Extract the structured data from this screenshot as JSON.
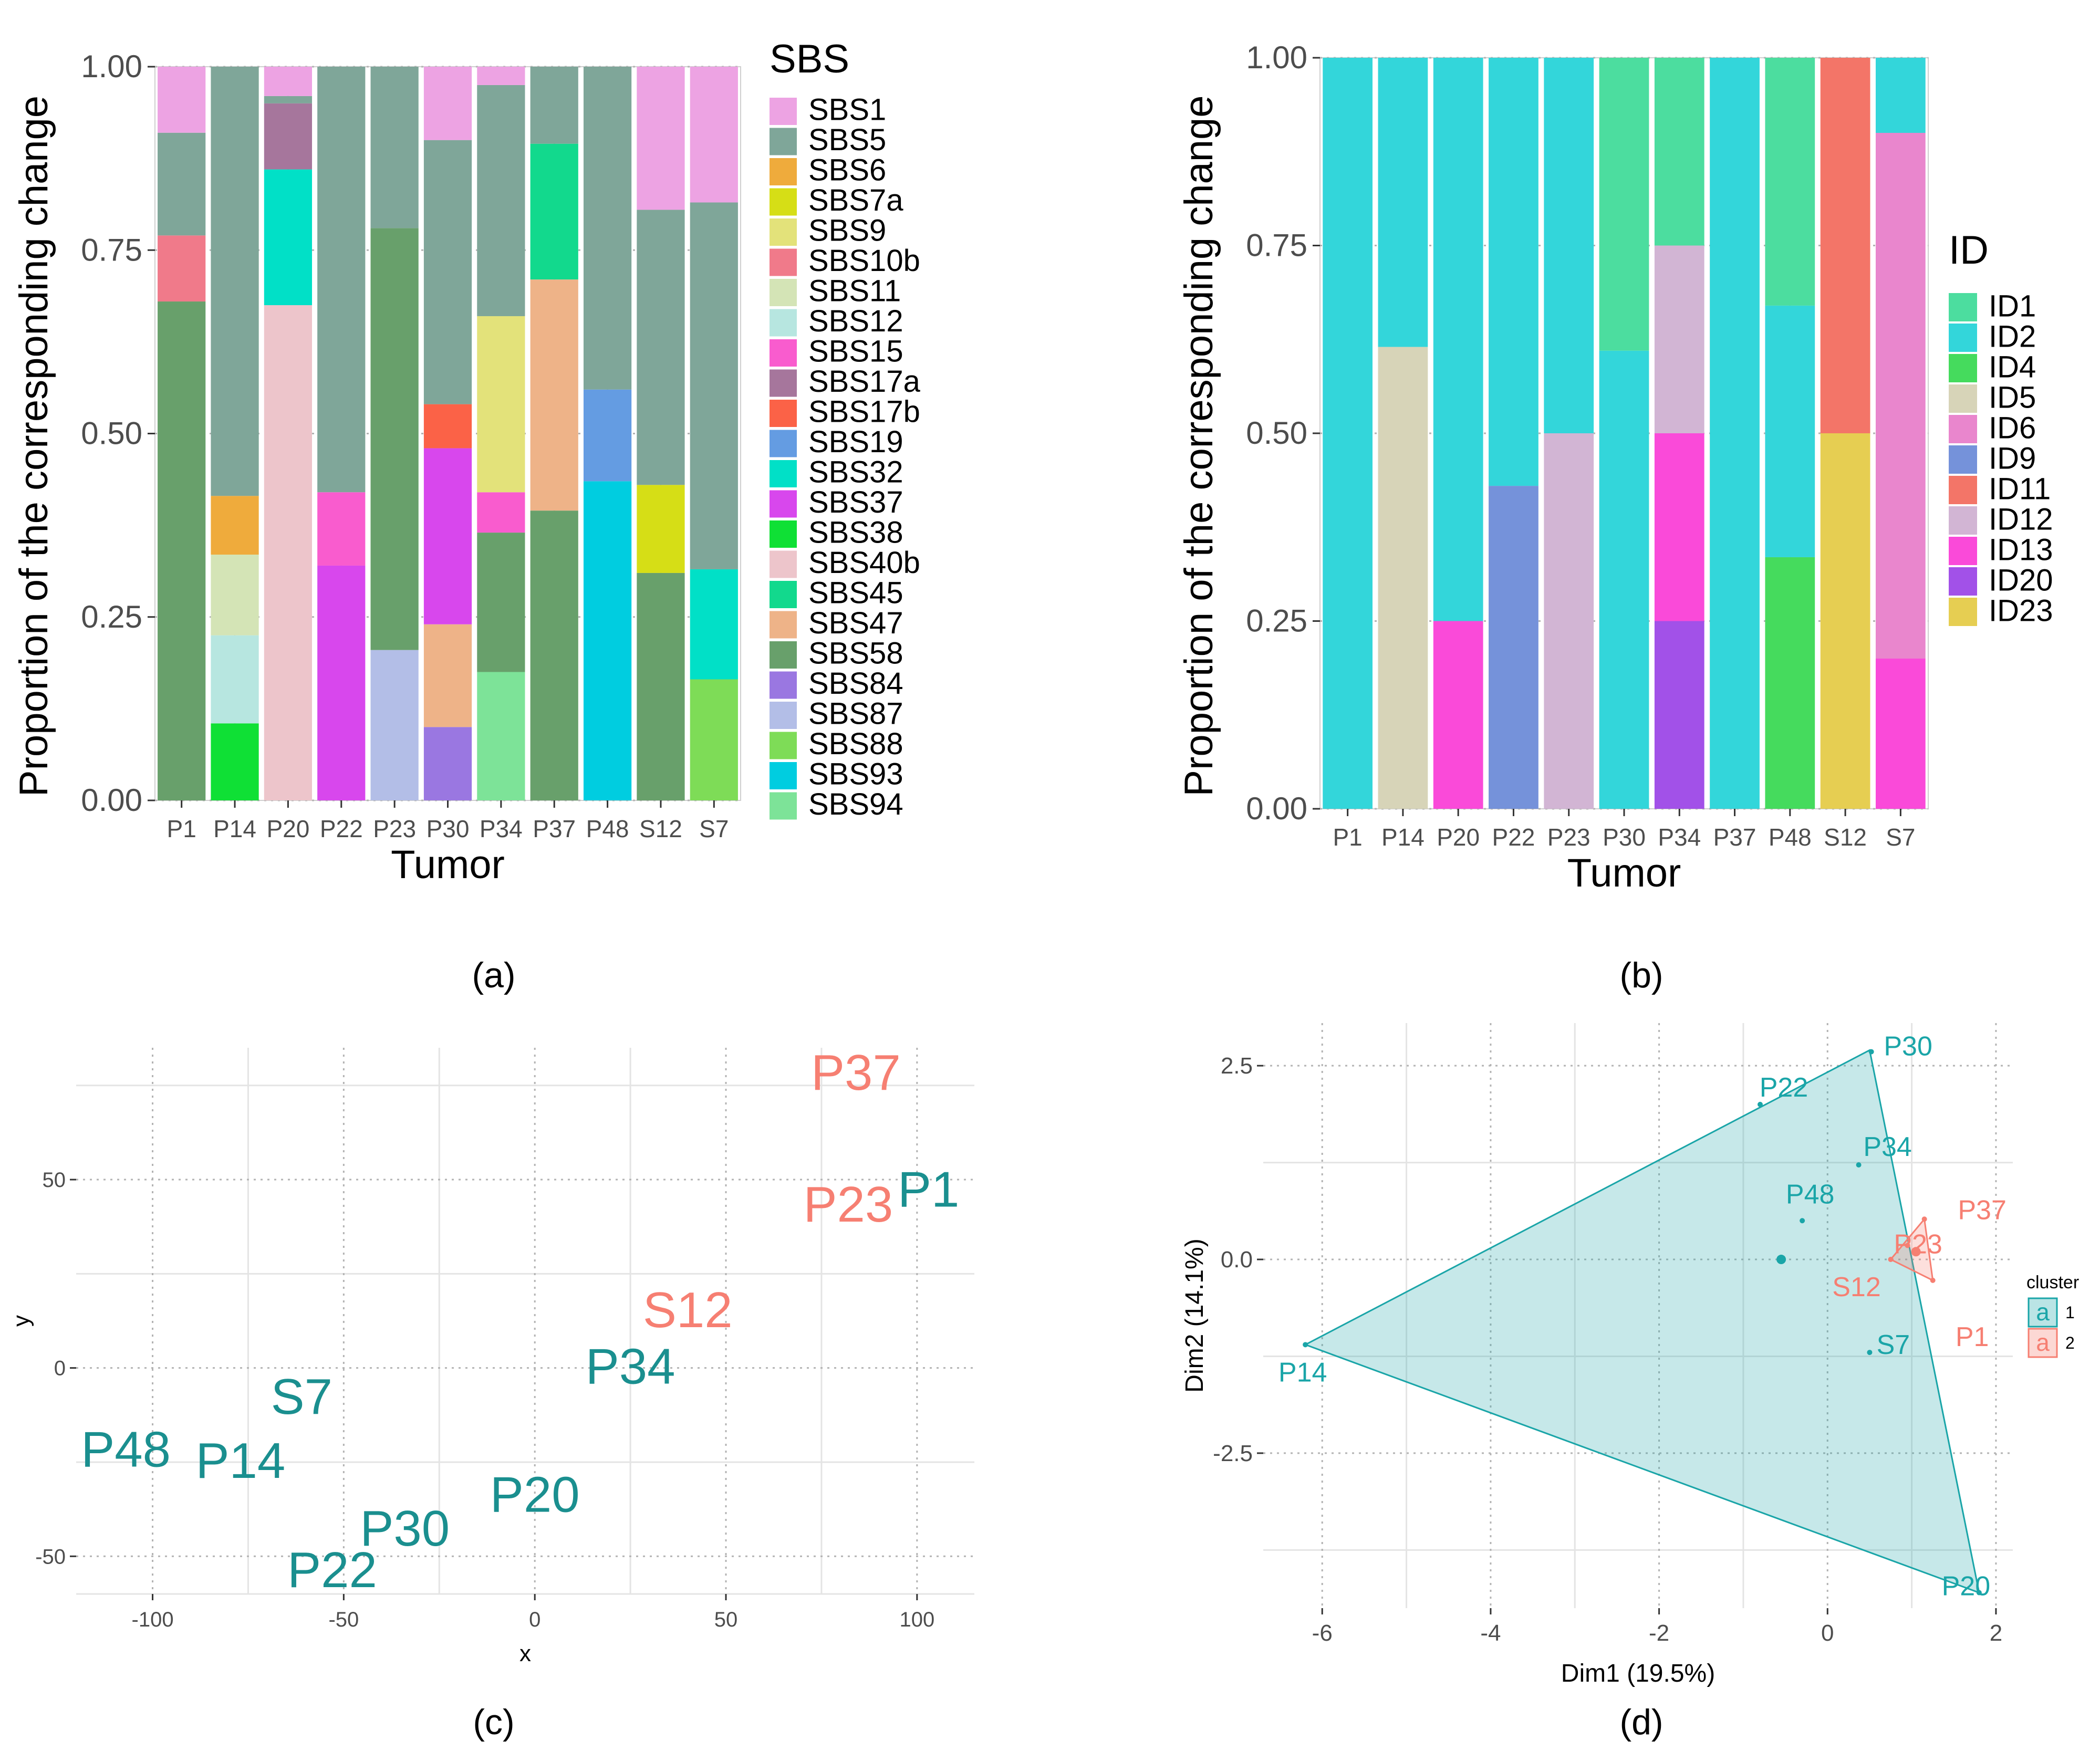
{
  "panel_labels": [
    "(a)",
    "(b)",
    "(c)",
    "(d)"
  ],
  "chart_data": [
    {
      "panel": "a",
      "type": "bar",
      "stacked": true,
      "title": "",
      "xlabel": "Tumor",
      "ylabel": "Proportion of the corresponding change",
      "ylim": [
        0,
        1
      ],
      "yticks": [
        "0.00",
        "0.25",
        "0.50",
        "0.75",
        "1.00"
      ],
      "categories": [
        "P1",
        "P14",
        "P20",
        "P22",
        "P23",
        "P30",
        "P34",
        "P37",
        "P48",
        "S12",
        "S7"
      ],
      "legend_title": "SBS",
      "legend": [
        {
          "name": "SBS1",
          "color": "#EDA3E3"
        },
        {
          "name": "SBS5",
          "color": "#7FA699"
        },
        {
          "name": "SBS6",
          "color": "#EFAB3C"
        },
        {
          "name": "SBS7a",
          "color": "#D6DE16"
        },
        {
          "name": "SBS9",
          "color": "#E3E27A"
        },
        {
          "name": "SBS10b",
          "color": "#F07A8A"
        },
        {
          "name": "SBS11",
          "color": "#D4E4B6"
        },
        {
          "name": "SBS12",
          "color": "#B7E6E0"
        },
        {
          "name": "SBS15",
          "color": "#F95CCE"
        },
        {
          "name": "SBS17a",
          "color": "#A6769C"
        },
        {
          "name": "SBS17b",
          "color": "#FB6247"
        },
        {
          "name": "SBS19",
          "color": "#649CE2"
        },
        {
          "name": "SBS32",
          "color": "#01E0C7"
        },
        {
          "name": "SBS37",
          "color": "#D847ED"
        },
        {
          "name": "SBS38",
          "color": "#0FE035"
        },
        {
          "name": "SBS40b",
          "color": "#EDC5CB"
        },
        {
          "name": "SBS45",
          "color": "#12D98D"
        },
        {
          "name": "SBS47",
          "color": "#EEB388"
        },
        {
          "name": "SBS58",
          "color": "#68A06B"
        },
        {
          "name": "SBS84",
          "color": "#9A77E1"
        },
        {
          "name": "SBS87",
          "color": "#B3BEE7"
        },
        {
          "name": "SBS88",
          "color": "#7EDC57"
        },
        {
          "name": "SBS93",
          "color": "#00CDE0"
        },
        {
          "name": "SBS94",
          "color": "#7DE398"
        }
      ],
      "bars": [
        [
          [
            "SBS58",
            0.68
          ],
          [
            "SBS10b",
            0.09
          ],
          [
            "SBS5",
            0.14
          ],
          [
            "SBS1",
            0.09
          ]
        ],
        [
          [
            "SBS38",
            0.105
          ],
          [
            "SBS12",
            0.12
          ],
          [
            "SBS11",
            0.11
          ],
          [
            "SBS6",
            0.08
          ],
          [
            "SBS5",
            0.585
          ]
        ],
        [
          [
            "SBS40b",
            0.675
          ],
          [
            "SBS32",
            0.185
          ],
          [
            "SBS17a",
            0.09
          ],
          [
            "SBS5",
            0.01
          ],
          [
            "SBS1",
            0.04
          ]
        ],
        [
          [
            "SBS37",
            0.32
          ],
          [
            "SBS15",
            0.1
          ],
          [
            "SBS5",
            0.58
          ]
        ],
        [
          [
            "SBS87",
            0.205
          ],
          [
            "SBS58",
            0.575
          ],
          [
            "SBS5",
            0.22
          ]
        ],
        [
          [
            "SBS84",
            0.1
          ],
          [
            "SBS47",
            0.14
          ],
          [
            "SBS37",
            0.24
          ],
          [
            "SBS17b",
            0.06
          ],
          [
            "SBS5",
            0.36
          ],
          [
            "SBS1",
            0.1
          ]
        ],
        [
          [
            "SBS94",
            0.175
          ],
          [
            "SBS58",
            0.19
          ],
          [
            "SBS15",
            0.055
          ],
          [
            "SBS9",
            0.24
          ],
          [
            "SBS5",
            0.315
          ],
          [
            "SBS1",
            0.025
          ]
        ],
        [
          [
            "SBS58",
            0.395
          ],
          [
            "SBS47",
            0.315
          ],
          [
            "SBS45",
            0.185
          ],
          [
            "SBS5",
            0.105
          ]
        ],
        [
          [
            "SBS93",
            0.435
          ],
          [
            "SBS19",
            0.125
          ],
          [
            "SBS5",
            0.44
          ]
        ],
        [
          [
            "SBS58",
            0.31
          ],
          [
            "SBS7a",
            0.12
          ],
          [
            "SBS5",
            0.375
          ],
          [
            "SBS1",
            0.195
          ]
        ],
        [
          [
            "SBS88",
            0.165
          ],
          [
            "SBS32",
            0.15
          ],
          [
            "SBS5",
            0.5
          ],
          [
            "SBS1",
            0.185
          ]
        ]
      ]
    },
    {
      "panel": "b",
      "type": "bar",
      "stacked": true,
      "title": "",
      "xlabel": "Tumor",
      "ylabel": "Proportion of the corresponding change",
      "ylim": [
        0,
        1
      ],
      "yticks": [
        "0.00",
        "0.25",
        "0.50",
        "0.75",
        "1.00"
      ],
      "categories": [
        "P1",
        "P14",
        "P20",
        "P22",
        "P23",
        "P30",
        "P34",
        "P37",
        "P48",
        "S12",
        "S7"
      ],
      "legend_title": "ID",
      "legend": [
        {
          "name": "ID1",
          "color": "#4CDD9F"
        },
        {
          "name": "ID2",
          "color": "#33D6DA"
        },
        {
          "name": "ID4",
          "color": "#45DB5D"
        },
        {
          "name": "ID5",
          "color": "#D7D4B8"
        },
        {
          "name": "ID6",
          "color": "#E986CD"
        },
        {
          "name": "ID9",
          "color": "#7592DA"
        },
        {
          "name": "ID11",
          "color": "#F37568"
        },
        {
          "name": "ID12",
          "color": "#D2B5D4"
        },
        {
          "name": "ID13",
          "color": "#FA4AD9"
        },
        {
          "name": "ID20",
          "color": "#A251E8"
        },
        {
          "name": "ID23",
          "color": "#E6CE52"
        }
      ],
      "bars": [
        [
          [
            "ID2",
            1.0
          ]
        ],
        [
          [
            "ID5",
            0.615
          ],
          [
            "ID2",
            0.385
          ]
        ],
        [
          [
            "ID13",
            0.25
          ],
          [
            "ID2",
            0.75
          ]
        ],
        [
          [
            "ID9",
            0.43
          ],
          [
            "ID2",
            0.57
          ]
        ],
        [
          [
            "ID12",
            0.5
          ],
          [
            "ID2",
            0.5
          ]
        ],
        [
          [
            "ID2",
            0.61
          ],
          [
            "ID1",
            0.39
          ]
        ],
        [
          [
            "ID20",
            0.25
          ],
          [
            "ID13",
            0.25
          ],
          [
            "ID12",
            0.25
          ],
          [
            "ID1",
            0.25
          ]
        ],
        [
          [
            "ID2",
            1.0
          ]
        ],
        [
          [
            "ID4",
            0.335
          ],
          [
            "ID2",
            0.335
          ],
          [
            "ID1",
            0.33
          ]
        ],
        [
          [
            "ID23",
            0.5
          ],
          [
            "ID11",
            0.5
          ]
        ],
        [
          [
            "ID13",
            0.2
          ],
          [
            "ID6",
            0.7
          ],
          [
            "ID2",
            0.1
          ]
        ]
      ]
    },
    {
      "panel": "c",
      "type": "scatter",
      "title": "",
      "xlabel": "x",
      "ylabel": "y",
      "xlim": [
        -120,
        115
      ],
      "ylim": [
        -60,
        85
      ],
      "xticks": [
        -100,
        -50,
        0,
        50,
        100
      ],
      "yticks": [
        -50,
        0,
        50
      ],
      "cluster_colors": {
        "1": "#1A8F8F",
        "2": "#F67F72"
      },
      "points": [
        {
          "label": "P37",
          "x": 84,
          "y": 78,
          "cluster": 2
        },
        {
          "label": "P1",
          "x": 103,
          "y": 47,
          "cluster": 1
        },
        {
          "label": "P23",
          "x": 82,
          "y": 43,
          "cluster": 2
        },
        {
          "label": "S12",
          "x": 40,
          "y": 15,
          "cluster": 2
        },
        {
          "label": "P34",
          "x": 25,
          "y": 0,
          "cluster": 1
        },
        {
          "label": "S7",
          "x": -61,
          "y": -8,
          "cluster": 1
        },
        {
          "label": "P48",
          "x": -107,
          "y": -22,
          "cluster": 1
        },
        {
          "label": "P14",
          "x": -77,
          "y": -25,
          "cluster": 1
        },
        {
          "label": "P20",
          "x": 0,
          "y": -34,
          "cluster": 1
        },
        {
          "label": "P30",
          "x": -34,
          "y": -43,
          "cluster": 1
        },
        {
          "label": "P22",
          "x": -53,
          "y": -54,
          "cluster": 1
        }
      ]
    },
    {
      "panel": "d",
      "type": "scatter",
      "title": "",
      "xlabel": "Dim1 (19.5%)",
      "ylabel": "Dim2 (14.1%)",
      "xlim": [
        -6.7,
        2.2
      ],
      "ylim": [
        -4.5,
        3.05
      ],
      "xticks": [
        -6,
        -4,
        -2,
        0,
        2
      ],
      "yticks": [
        -2.5,
        0.0,
        2.5
      ],
      "ytick_labels": [
        "-2.5",
        "0.0",
        "2.5"
      ],
      "legend_title": "cluster",
      "legend": [
        {
          "name": "1",
          "color": "#1AA5A8",
          "glyph": "a"
        },
        {
          "name": "2",
          "color": "#F67F72",
          "glyph": "a"
        }
      ],
      "hulls": [
        {
          "cluster": "1",
          "points": [
            [
              -6.2,
              -1.1
            ],
            [
              0.5,
              2.7
            ],
            [
              1.8,
              -4.3
            ]
          ]
        },
        {
          "cluster": "2",
          "points": [
            [
              0.75,
              0.0
            ],
            [
              1.15,
              0.52
            ],
            [
              1.25,
              -0.27
            ]
          ]
        }
      ],
      "points": [
        {
          "label": "P30",
          "x": 0.52,
          "y": 2.68,
          "cluster": 1
        },
        {
          "label": "P22",
          "x": -0.8,
          "y": 2.0,
          "cluster": 1
        },
        {
          "label": "P34",
          "x": 0.37,
          "y": 1.22,
          "cluster": 1
        },
        {
          "label": "P48",
          "x": -0.3,
          "y": 0.5,
          "cluster": 1
        },
        {
          "label": "S7",
          "x": 0.5,
          "y": -1.2,
          "cluster": 1
        },
        {
          "label": "P14",
          "x": -6.2,
          "y": -1.1,
          "cluster": 1
        },
        {
          "label": "P20",
          "x": 1.8,
          "y": -4.3,
          "cluster": 1
        },
        {
          "label": "P37",
          "x": 1.15,
          "y": 0.52,
          "cluster": 2
        },
        {
          "label": "P23",
          "x": 0.95,
          "y": 0.18,
          "cluster": 2
        },
        {
          "label": "S12",
          "x": 0.75,
          "y": 0.0,
          "cluster": 2
        },
        {
          "label": "P1",
          "x": 1.25,
          "y": -0.27,
          "cluster": 2
        }
      ],
      "centroids": [
        {
          "cluster": 1,
          "x": -0.55,
          "y": 0.0
        },
        {
          "cluster": 2,
          "x": 1.05,
          "y": 0.1
        }
      ]
    }
  ]
}
